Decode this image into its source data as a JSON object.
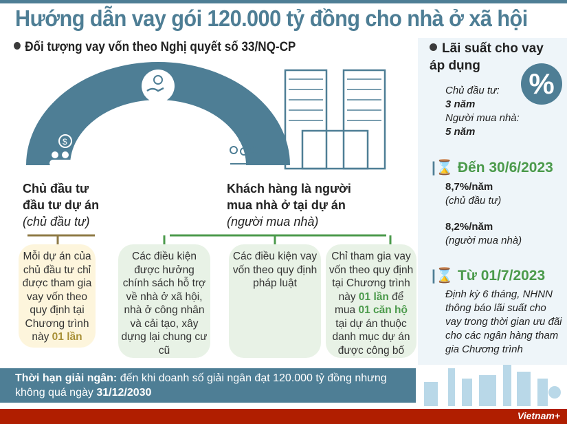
{
  "title": "Hướng dẫn vay gói 120.000 tỷ đồng cho nhà ở xã hội",
  "subtitle": "Đối tượng vay vốn theo Nghị quyết số 33/NQ-CP",
  "groups": {
    "investor": {
      "title_l1": "Chủ đầu tư",
      "title_l2": "đầu tư dự án",
      "alias": "(chủ đầu tư)"
    },
    "buyer": {
      "title_l1": "Khách hàng là người",
      "title_l2": "mua nhà ở tại dự án",
      "alias": "(người mua nhà)"
    }
  },
  "boxes": [
    {
      "pre": "Mỗi dự án của chủ đầu tư chỉ được tham gia vay vốn theo quy định tại Chương trình này ",
      "h1": "01 lần"
    },
    {
      "text": "Các điều kiện được hưởng chính sách hỗ trợ về nhà ở xã hội, nhà ở công nhân và cải tạo, xây dựng lại chung cư cũ"
    },
    {
      "text": "Các điều kiện vay vốn theo quy định pháp luật"
    },
    {
      "pre": "Chỉ tham gia vay vốn theo quy định tại Chương trình này ",
      "h1": "01 lần",
      "mid": " để mua ",
      "h2": "01 căn hộ",
      "post": " tại dự án thuộc danh mục dự án được công bố"
    }
  ],
  "rates": {
    "heading": "Lãi suất cho vay áp dụng",
    "percent_symbol": "%",
    "investor_label": "Chủ đầu tư:",
    "investor_term": "3 năm",
    "buyer_label": "Người mua nhà:",
    "buyer_term": "5 năm",
    "period1": {
      "heading": "Đến 30/6/2023",
      "rate1": "8,7%/năm",
      "who1": "(chủ đầu tư)",
      "rate2": "8,2%/năm",
      "who2": "(người mua nhà)"
    },
    "period2": {
      "heading": "Từ 01/7/2023",
      "text": "Định kỳ 6 tháng, NHNN thông báo lãi suất cho vay trong thời gian ưu đãi cho các ngân hàng tham gia Chương trình"
    }
  },
  "deadline": {
    "label": "Thời hạn giải ngân:",
    "text": " đến khi doanh số giải ngân đạt 120.000 tỷ đồng nhưng không quá ngày ",
    "date": "31/12/2030"
  },
  "brand": "Vietnam+",
  "colors": {
    "primary": "#4e7e95",
    "green": "#4b9a4b",
    "gold": "#a88f35",
    "footer": "#b01e00"
  }
}
